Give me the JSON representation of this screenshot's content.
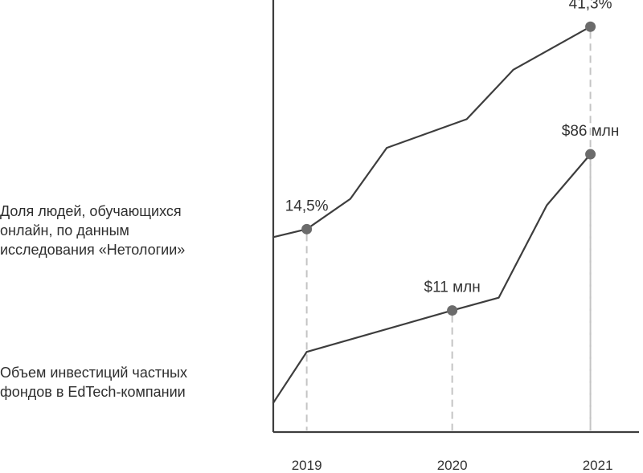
{
  "chart_data": {
    "type": "line",
    "title": "",
    "xlabel": "",
    "ylabel": "",
    "x_ticks": [
      "2019",
      "2020",
      "2021"
    ],
    "x_domain": [
      2018.77,
      2021.32
    ],
    "y_domain": [
      0,
      1
    ],
    "grid": false,
    "legend": "left, beside lines",
    "colors": {
      "line": "#3d3d3d",
      "marker": "#6b6b6b",
      "dropline": "#c4c4c4",
      "axis": "#3d3d3d"
    },
    "series": [
      {
        "name": "Доля людей, обучающихся онлайн, по данным исследования «Нетологии»",
        "name_lines": [
          "Доля людей, обучающихся",
          "онлайн, по данным",
          "исследования «Нетологии»"
        ],
        "points": [
          {
            "x": 2018.77,
            "y": 0.42
          },
          {
            "x": 2019.0,
            "y": 0.445,
            "label": "14,5%"
          },
          {
            "x": 2019.3,
            "y": 0.54
          },
          {
            "x": 2019.55,
            "y": 0.7
          },
          {
            "x": 2020.1,
            "y": 0.79
          },
          {
            "x": 2020.42,
            "y": 0.945
          },
          {
            "x": 2020.95,
            "y": 1.08,
            "label": "41,3%"
          }
        ]
      },
      {
        "name": "Объем инвестиций частных фондов в EdTech-компании",
        "name_lines": [
          "Объем инвестиций частных",
          "фондов в EdTech-компании"
        ],
        "points": [
          {
            "x": 2018.77,
            "y": -0.1
          },
          {
            "x": 2019.0,
            "y": 0.06
          },
          {
            "x": 2020.0,
            "y": 0.19,
            "label": "$11 млн"
          },
          {
            "x": 2020.32,
            "y": 0.23
          },
          {
            "x": 2020.65,
            "y": 0.52
          },
          {
            "x": 2020.95,
            "y": 0.68,
            "label": "$86 млн"
          }
        ]
      }
    ]
  }
}
